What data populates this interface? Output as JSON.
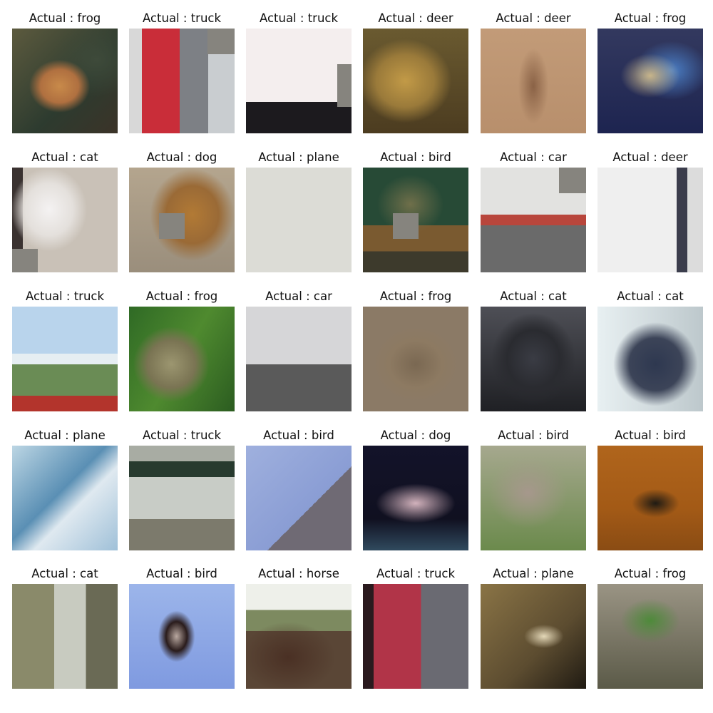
{
  "figure": {
    "prefix": "Actual",
    "rows": 5,
    "cols": 6,
    "items": [
      {
        "title": "Actual : frog",
        "label": "frog",
        "occlusion": null
      },
      {
        "title": "Actual : truck",
        "label": "truck",
        "occlusion": "top-right"
      },
      {
        "title": "Actual : truck",
        "label": "truck",
        "occlusion": "mid-right"
      },
      {
        "title": "Actual : deer",
        "label": "deer",
        "occlusion": null
      },
      {
        "title": "Actual : deer",
        "label": "deer",
        "occlusion": null
      },
      {
        "title": "Actual : frog",
        "label": "frog",
        "occlusion": null
      },
      {
        "title": "Actual : cat",
        "label": "cat",
        "occlusion": "bottom-left"
      },
      {
        "title": "Actual : dog",
        "label": "dog",
        "occlusion": "mid-center"
      },
      {
        "title": "Actual : plane",
        "label": "plane",
        "occlusion": null
      },
      {
        "title": "Actual : bird",
        "label": "bird",
        "occlusion": "mid-center"
      },
      {
        "title": "Actual : car",
        "label": "car",
        "occlusion": "top-right"
      },
      {
        "title": "Actual : deer",
        "label": "deer",
        "occlusion": null
      },
      {
        "title": "Actual : truck",
        "label": "truck",
        "occlusion": null
      },
      {
        "title": "Actual : frog",
        "label": "frog",
        "occlusion": null
      },
      {
        "title": "Actual : car",
        "label": "car",
        "occlusion": null
      },
      {
        "title": "Actual : frog",
        "label": "frog",
        "occlusion": null
      },
      {
        "title": "Actual : cat",
        "label": "cat",
        "occlusion": null
      },
      {
        "title": "Actual : cat",
        "label": "cat",
        "occlusion": null
      },
      {
        "title": "Actual : plane",
        "label": "plane",
        "occlusion": null
      },
      {
        "title": "Actual : truck",
        "label": "truck",
        "occlusion": null
      },
      {
        "title": "Actual : bird",
        "label": "bird",
        "occlusion": null
      },
      {
        "title": "Actual : dog",
        "label": "dog",
        "occlusion": null
      },
      {
        "title": "Actual : bird",
        "label": "bird",
        "occlusion": null
      },
      {
        "title": "Actual : bird",
        "label": "bird",
        "occlusion": null
      },
      {
        "title": "Actual : cat",
        "label": "cat",
        "occlusion": null
      },
      {
        "title": "Actual : bird",
        "label": "bird",
        "occlusion": null
      },
      {
        "title": "Actual : horse",
        "label": "horse",
        "occlusion": null
      },
      {
        "title": "Actual : truck",
        "label": "truck",
        "occlusion": null
      },
      {
        "title": "Actual : plane",
        "label": "plane",
        "occlusion": null
      },
      {
        "title": "Actual : frog",
        "label": "frog",
        "occlusion": null
      }
    ]
  },
  "colors": {
    "background": "#ffffff",
    "title_text": "#111111",
    "occlusion_patch": "#86847e"
  }
}
